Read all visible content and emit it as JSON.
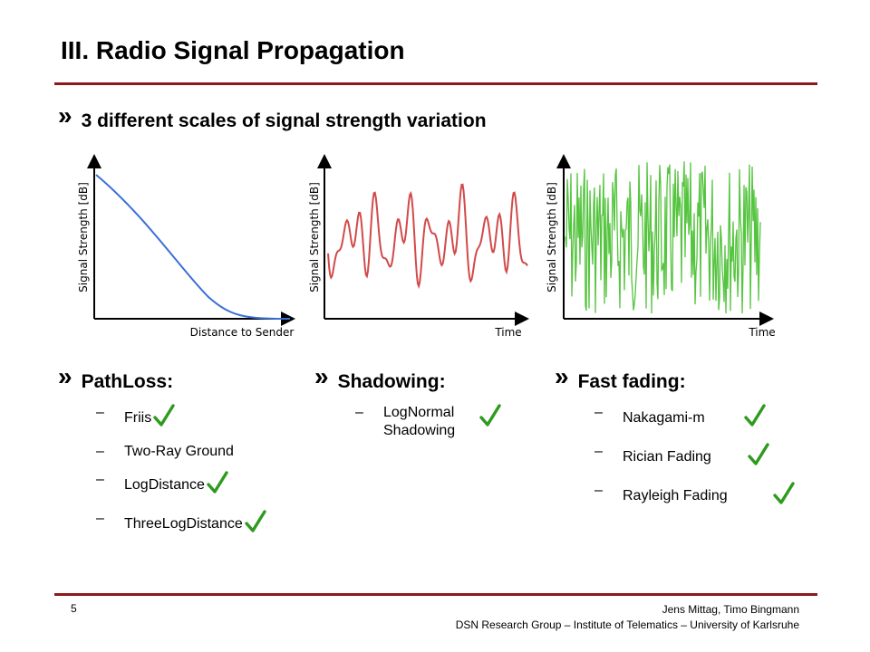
{
  "slide": {
    "title": "III. Radio Signal Propagation",
    "headline": "3 different scales of signal strength variation",
    "bullet_marker": "»"
  },
  "plots": [
    {
      "ylabel": "Signal Strength [dB]",
      "xlabel": "Distance to Sender",
      "line_color": "#3c6fd6"
    },
    {
      "ylabel": "Signal Strength [dB]",
      "xlabel": "Time",
      "line_color": "#d24a4a"
    },
    {
      "ylabel": "Signal Strength [dB]",
      "xlabel": "Time",
      "line_color": "#55c43f"
    }
  ],
  "columns": [
    {
      "heading": "PathLoss:",
      "items": [
        {
          "label": "Friis",
          "checked": true
        },
        {
          "label": "Two-Ray Ground",
          "checked": false
        },
        {
          "label": "LogDistance",
          "checked": true
        },
        {
          "label": "ThreeLogDistance",
          "checked": true
        }
      ]
    },
    {
      "heading": "Shadowing:",
      "items": [
        {
          "label": "LogNormal Shadowing",
          "checked": true
        }
      ]
    },
    {
      "heading": "Fast fading:",
      "items": [
        {
          "label": "Nakagami-m",
          "checked": true
        },
        {
          "label": "Rician Fading",
          "checked": true
        },
        {
          "label": "Rayleigh Fading",
          "checked": true
        }
      ]
    }
  ],
  "footer": {
    "page_number": "5",
    "authors": "Jens Mittag, Timo Bingmann",
    "affiliation": "DSN Research Group – Institute of Telematics – University of Karlsruhe"
  },
  "colors": {
    "accent_rule": "#8b1a1a",
    "check": "#2e9a1e"
  }
}
